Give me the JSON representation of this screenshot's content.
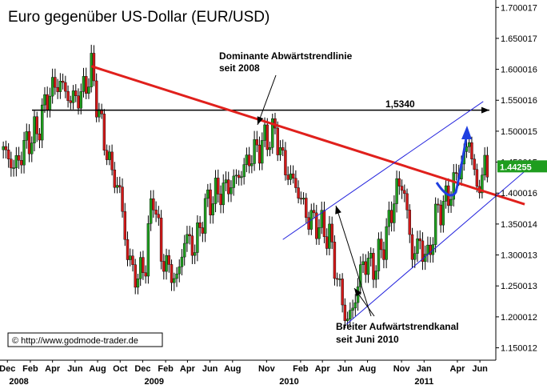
{
  "chart_data": {
    "type": "candlestick",
    "title": "Euro gegenüber US-Dollar  (EUR/USD)",
    "ylim": [
      1.13,
      1.712
    ],
    "y_ticks": [
      "1.700017",
      "1.650017",
      "1.600016",
      "1.550016",
      "1.500015",
      "1.450015",
      "1.400016",
      "1.350014",
      "1.300013",
      "1.250013",
      "1.200012",
      "1.150012"
    ],
    "x_ticks": [
      {
        "label": "Dec",
        "date": "2007-12"
      },
      {
        "label": "Feb",
        "date": "2008-02"
      },
      {
        "label": "Apr",
        "date": "2008-04"
      },
      {
        "label": "Jun",
        "date": "2008-06"
      },
      {
        "label": "Aug",
        "date": "2008-08"
      },
      {
        "label": "Oct",
        "date": "2008-10"
      },
      {
        "label": "Dec",
        "date": "2008-12"
      },
      {
        "label": "Feb",
        "date": "2009-02"
      },
      {
        "label": "Apr",
        "date": "2009-04"
      },
      {
        "label": "Jun",
        "date": "2009-06"
      },
      {
        "label": "Aug",
        "date": "2009-08"
      },
      {
        "label": "Nov",
        "date": "2009-11"
      },
      {
        "label": "Feb",
        "date": "2010-02"
      },
      {
        "label": "Apr",
        "date": "2010-04"
      },
      {
        "label": "Jun",
        "date": "2010-06"
      },
      {
        "label": "Aug",
        "date": "2010-08"
      },
      {
        "label": "Nov",
        "date": "2010-11"
      },
      {
        "label": "Jan",
        "date": "2011-01"
      },
      {
        "label": "Apr",
        "date": "2011-04"
      },
      {
        "label": "Jun",
        "date": "2011-06"
      }
    ],
    "year_labels": [
      {
        "label": "2008",
        "date": "2008-01"
      },
      {
        "label": "2009",
        "date": "2009-01"
      },
      {
        "label": "2010",
        "date": "2010-01"
      },
      {
        "label": "2011",
        "date": "2011-01"
      }
    ],
    "price_path": [
      [
        "2007-11-20",
        1.47
      ],
      [
        "2007-12-20",
        1.44
      ],
      [
        "2008-01-20",
        1.48
      ],
      [
        "2008-02-20",
        1.5
      ],
      [
        "2008-03-20",
        1.56
      ],
      [
        "2008-04-20",
        1.58
      ],
      [
        "2008-05-20",
        1.55
      ],
      [
        "2008-06-20",
        1.56
      ],
      [
        "2008-07-15",
        1.6
      ],
      [
        "2008-08-10",
        1.51
      ],
      [
        "2008-09-05",
        1.44
      ],
      [
        "2008-10-01",
        1.4
      ],
      [
        "2008-10-20",
        1.3
      ],
      [
        "2008-11-15",
        1.26
      ],
      [
        "2008-12-10",
        1.29
      ],
      [
        "2008-12-28",
        1.41
      ],
      [
        "2009-01-20",
        1.3
      ],
      [
        "2009-02-15",
        1.27
      ],
      [
        "2009-03-05",
        1.26
      ],
      [
        "2009-03-25",
        1.33
      ],
      [
        "2009-04-20",
        1.31
      ],
      [
        "2009-05-20",
        1.38
      ],
      [
        "2009-06-20",
        1.4
      ],
      [
        "2009-07-20",
        1.41
      ],
      [
        "2009-08-20",
        1.43
      ],
      [
        "2009-09-20",
        1.46
      ],
      [
        "2009-10-20",
        1.48
      ],
      [
        "2009-11-25",
        1.5
      ],
      [
        "2009-12-20",
        1.44
      ],
      [
        "2010-01-20",
        1.41
      ],
      [
        "2010-02-20",
        1.36
      ],
      [
        "2010-03-20",
        1.35
      ],
      [
        "2010-04-20",
        1.33
      ],
      [
        "2010-05-15",
        1.25
      ],
      [
        "2010-06-07",
        1.19
      ],
      [
        "2010-06-25",
        1.22
      ],
      [
        "2010-07-20",
        1.29
      ],
      [
        "2010-08-20",
        1.28
      ],
      [
        "2010-09-20",
        1.33
      ],
      [
        "2010-10-15",
        1.4
      ],
      [
        "2010-11-04",
        1.42
      ],
      [
        "2010-11-30",
        1.3
      ],
      [
        "2010-12-20",
        1.32
      ],
      [
        "2011-01-10",
        1.29
      ],
      [
        "2011-02-05",
        1.37
      ],
      [
        "2011-03-05",
        1.39
      ],
      [
        "2011-03-25",
        1.42
      ],
      [
        "2011-04-20",
        1.46
      ],
      [
        "2011-05-04",
        1.49
      ],
      [
        "2011-05-23",
        1.4
      ],
      [
        "2011-06-10",
        1.44
      ],
      [
        "2011-06-24",
        1.43
      ]
    ],
    "last_value": {
      "label": "1.44255",
      "value": 1.44255,
      "color": "#1f9d1f"
    },
    "hline": {
      "value": 1.534,
      "label": "1,5340",
      "color": "#000000"
    },
    "downtrend": {
      "from": [
        "2008-07-15",
        1.605
      ],
      "to": [
        "2011-09-30",
        1.382
      ],
      "color": "#e0201c"
    },
    "channel_upper": {
      "from": [
        "2009-12-15",
        1.325
      ],
      "to": [
        "2011-06-10",
        1.548
      ],
      "color": "#2222dd"
    },
    "channel_lower": {
      "from": [
        "2010-06-05",
        1.188
      ],
      "to": [
        "2011-09-30",
        1.435
      ],
      "color": "#2222dd"
    },
    "projection_color": "#1f3fe0",
    "annotations": [
      {
        "lines": [
          "Dominante Abwärtstrendlinie",
          "seit 2008"
        ]
      },
      {
        "lines": [
          "Breiter Aufwärtstrendkanal",
          "seit Juni 2010"
        ]
      }
    ],
    "copyright": "© http://www.godmode-trader.de",
    "colors": {
      "bull": "#1f9d1f",
      "bear": "#d01818",
      "wick": "#000000"
    }
  }
}
